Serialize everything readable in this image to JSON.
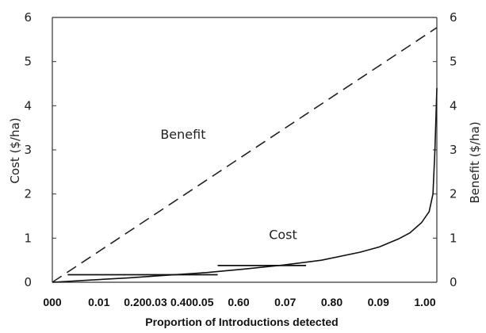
{
  "chart_data": {
    "type": "line",
    "xlabel": "Proportion of Introductions detected",
    "ylabel_left": "Cost ($/ha)",
    "ylabel_right": "Benefit ($/ha)",
    "x_tick_labels": [
      "000",
      "0.01",
      "0.200.03",
      "0.400.05",
      "0.60",
      "0.07",
      "0.80",
      "0.09",
      "1.00"
    ],
    "ylim": [
      0,
      6
    ],
    "y_ticks": [
      "0",
      "1",
      "2",
      "3",
      "4",
      "5",
      "6"
    ],
    "xlim": [
      0,
      1
    ],
    "series": [
      {
        "name": "Benefit",
        "style": "dashed",
        "color": "#222222",
        "x": [
          0.0,
          1.0
        ],
        "y": [
          0.0,
          5.77
        ]
      },
      {
        "name": "Cost",
        "style": "solid",
        "color": "#111111",
        "x": [
          0.0,
          0.1,
          0.2,
          0.3,
          0.4,
          0.5,
          0.6,
          0.7,
          0.8,
          0.85,
          0.9,
          0.93,
          0.96,
          0.98,
          0.99,
          0.995,
          1.0
        ],
        "y": [
          0.0,
          0.05,
          0.1,
          0.16,
          0.22,
          0.3,
          0.39,
          0.5,
          0.68,
          0.8,
          0.98,
          1.12,
          1.35,
          1.6,
          2.0,
          3.0,
          4.4
        ]
      }
    ],
    "reference_segments": [
      {
        "x": [
          0.04,
          0.43
        ],
        "y": [
          0.17,
          0.17
        ]
      },
      {
        "x": [
          0.43,
          0.66
        ],
        "y": [
          0.38,
          0.38
        ]
      }
    ],
    "annotations": [
      {
        "text": "Benefit",
        "x": 0.34,
        "y": 3.25
      },
      {
        "text": "Cost",
        "x": 0.6,
        "y": 0.98
      }
    ],
    "grid": false
  }
}
